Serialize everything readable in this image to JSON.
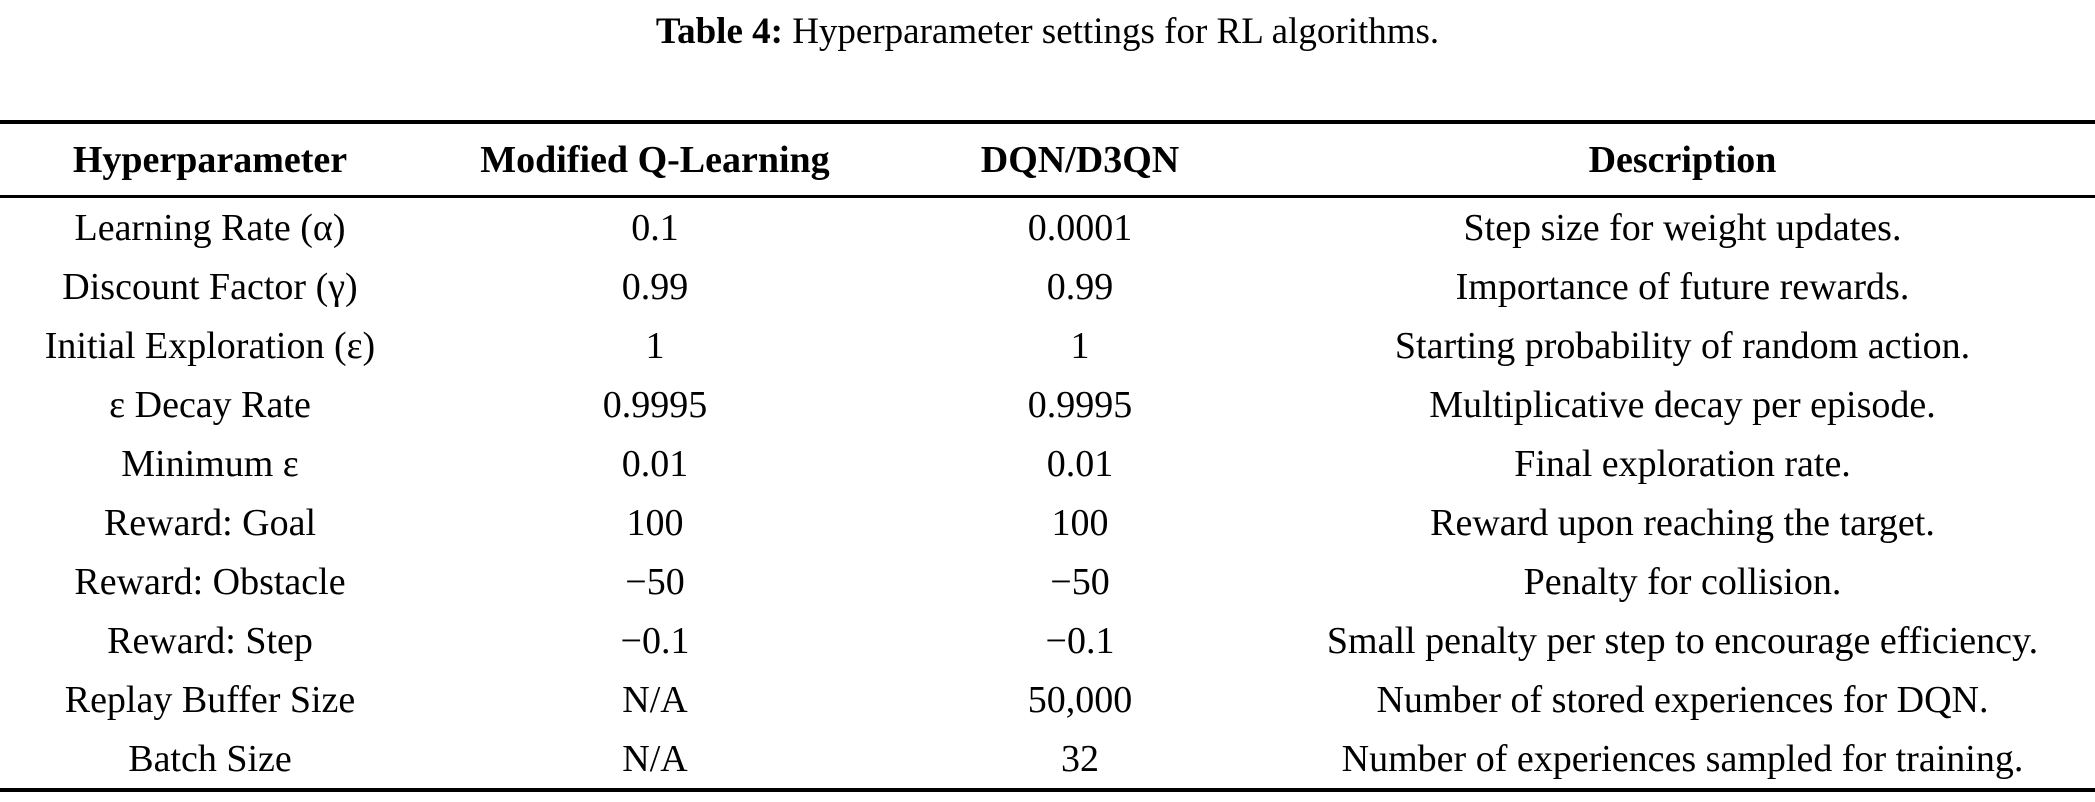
{
  "caption": {
    "label": "Table 4:",
    "text": "Hyperparameter settings for RL algorithms."
  },
  "table": {
    "columns": [
      "Hyperparameter",
      "Modified Q-Learning",
      "DQN/D3QN",
      "Description"
    ],
    "rows": [
      [
        "Learning Rate (α)",
        "0.1",
        "0.0001",
        "Step size for weight updates."
      ],
      [
        "Discount Factor (γ)",
        "0.99",
        "0.99",
        "Importance of future rewards."
      ],
      [
        "Initial Exploration (ε)",
        "1",
        "1",
        "Starting probability of random action."
      ],
      [
        "ε Decay Rate",
        "0.9995",
        "0.9995",
        "Multiplicative decay per episode."
      ],
      [
        "Minimum ε",
        "0.01",
        "0.01",
        "Final exploration rate."
      ],
      [
        "Reward: Goal",
        "100",
        "100",
        "Reward upon reaching the target."
      ],
      [
        "Reward: Obstacle",
        "−50",
        "−50",
        "Penalty for collision."
      ],
      [
        "Reward: Step",
        "−0.1",
        "−0.1",
        "Small penalty per step to encourage efficiency."
      ],
      [
        "Replay Buffer Size",
        "N/A",
        "50,000",
        "Number of stored experiences for DQN."
      ],
      [
        "Batch Size",
        "N/A",
        "32",
        "Number of experiences sampled for training."
      ]
    ]
  }
}
